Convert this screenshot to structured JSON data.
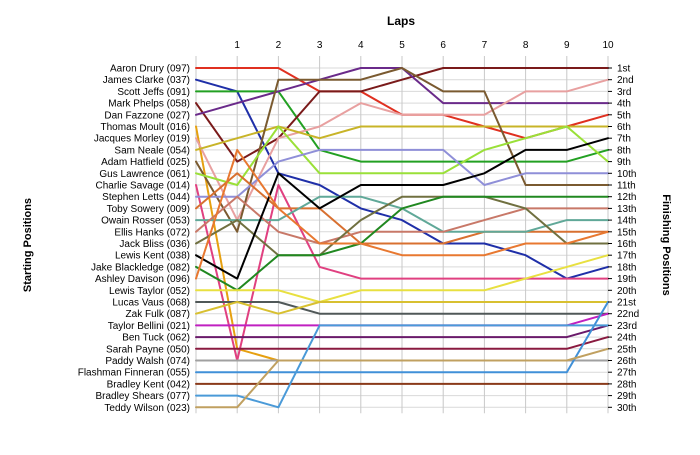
{
  "chart_data": {
    "type": "line",
    "title": "Laps",
    "ylabel_left": "Starting Positions",
    "ylabel_right": "Finishing Positions",
    "x": [
      1,
      2,
      3,
      4,
      5,
      6,
      7,
      8,
      9,
      10
    ],
    "x_tick_labels": [
      "1",
      "2",
      "3",
      "4",
      "5",
      "6",
      "7",
      "8",
      "9",
      "10"
    ],
    "finish_labels": [
      "1st",
      "2nd",
      "3rd",
      "4th",
      "5th",
      "6th",
      "7th",
      "8th",
      "9th",
      "10th",
      "11th",
      "12th",
      "13th",
      "14th",
      "15th",
      "16th",
      "17th",
      "18th",
      "19th",
      "20th",
      "21st",
      "22nd",
      "23rd",
      "24th",
      "25th",
      "26th",
      "27th",
      "28th",
      "29th",
      "30th"
    ],
    "grid": true,
    "series": [
      {
        "name": "Aaron Drury (097)",
        "color": "#e03020",
        "positions": [
          1,
          1,
          1,
          3,
          3,
          5,
          5,
          6,
          7,
          6,
          5
        ]
      },
      {
        "name": "James Clarke (037)",
        "color": "#1f2fa8",
        "positions": [
          2,
          3,
          10,
          11,
          13,
          14,
          16,
          16,
          17,
          19,
          18
        ]
      },
      {
        "name": "Scott Jeffs (091)",
        "color": "#22a022",
        "positions": [
          3,
          3,
          3,
          8,
          9,
          9,
          9,
          9,
          9,
          9,
          8
        ]
      },
      {
        "name": "Mark Phelps (058)",
        "color": "#7a1a1a",
        "positions": [
          4,
          9,
          7,
          3,
          3,
          2,
          1,
          1,
          1,
          1,
          1
        ]
      },
      {
        "name": "Dan Fazzone (027)",
        "color": "#6a2a8a",
        "positions": [
          5,
          4,
          3,
          2,
          1,
          1,
          4,
          4,
          4,
          4,
          4
        ]
      },
      {
        "name": "Thomas Moult (016)",
        "color": "#e6a010",
        "positions": [
          6,
          25,
          26,
          26,
          26,
          26,
          26,
          26,
          26,
          26,
          26
        ]
      },
      {
        "name": "Jacques Morley (019)",
        "color": "#e8a0a0",
        "positions": [
          7,
          14,
          7,
          6,
          4,
          5,
          5,
          5,
          3,
          3,
          2
        ]
      },
      {
        "name": "Sam Neale (054)",
        "color": "#c8b428",
        "positions": [
          8,
          7,
          6,
          7,
          6,
          6,
          6,
          6,
          6,
          6,
          6
        ]
      },
      {
        "name": "Adam Hatfield (025)",
        "color": "#7a5a30",
        "positions": [
          9,
          15,
          2,
          2,
          2,
          1,
          3,
          3,
          11,
          11,
          11
        ]
      },
      {
        "name": "Gus Lawrence (061)",
        "color": "#9ae038",
        "positions": [
          10,
          11,
          6,
          10,
          10,
          10,
          10,
          8,
          7,
          6,
          9
        ]
      },
      {
        "name": "Charlie Savage (014)",
        "color": "#e04080",
        "positions": [
          11,
          26,
          11,
          18,
          19,
          19,
          19,
          19,
          19,
          19,
          19
        ]
      },
      {
        "name": "Stephen Letts (044)",
        "color": "#8f8fd8",
        "positions": [
          12,
          12,
          9,
          8,
          8,
          8,
          8,
          11,
          10,
          10,
          10
        ]
      },
      {
        "name": "Toby Sowery (009)",
        "color": "#d87030",
        "positions": [
          13,
          10,
          13,
          13,
          16,
          16,
          16,
          15,
          15,
          15,
          15
        ]
      },
      {
        "name": "Owain Rosser (053)",
        "color": "#60a898",
        "positions": [
          14,
          14,
          14,
          12,
          12,
          13,
          15,
          15,
          15,
          14,
          14
        ]
      },
      {
        "name": "Ellis Hanks (072)",
        "color": "#c87868",
        "positions": [
          15,
          12,
          15,
          16,
          15,
          15,
          15,
          14,
          13,
          13,
          13
        ]
      },
      {
        "name": "Jack Bliss (036)",
        "color": "#707040",
        "positions": [
          16,
          14,
          17,
          17,
          14,
          12,
          12,
          12,
          13,
          16,
          16
        ]
      },
      {
        "name": "Lewis Kent (038)",
        "color": "#000000",
        "positions": [
          17,
          19,
          10,
          13,
          11,
          11,
          11,
          10,
          8,
          8,
          7
        ]
      },
      {
        "name": "Jake Blackledge (082)",
        "color": "#208820",
        "positions": [
          18,
          20,
          17,
          17,
          16,
          13,
          12,
          12,
          12,
          12,
          12
        ]
      },
      {
        "name": "Ashley Davison (096)",
        "color": "#e87830",
        "positions": [
          19,
          8,
          13,
          16,
          16,
          17,
          17,
          17,
          16,
          16,
          15
        ]
      },
      {
        "name": "Lewis Taylor (052)",
        "color": "#e8e040",
        "positions": [
          20,
          20,
          20,
          21,
          20,
          20,
          20,
          20,
          19,
          18,
          17
        ]
      },
      {
        "name": "Lucas Vaus (068)",
        "color": "#505858",
        "positions": [
          21,
          21,
          21,
          22,
          22,
          22,
          22,
          22,
          22,
          22,
          22
        ]
      },
      {
        "name": "Zak Fulk (087)",
        "color": "#d8c030",
        "positions": [
          22,
          21,
          22,
          21,
          21,
          21,
          21,
          21,
          21,
          21,
          21
        ]
      },
      {
        "name": "Taylor Bellini (021)",
        "color": "#c020c0",
        "positions": [
          23,
          23,
          23,
          23,
          23,
          23,
          23,
          23,
          23,
          23,
          22
        ]
      },
      {
        "name": "Ben Tuck (062)",
        "color": "#6a1a6a",
        "positions": [
          24,
          24,
          24,
          24,
          24,
          24,
          24,
          24,
          24,
          24,
          23
        ]
      },
      {
        "name": "Sarah Payne (050)",
        "color": "#8a1a40",
        "positions": [
          25,
          25,
          25,
          25,
          25,
          25,
          25,
          25,
          25,
          25,
          24
        ]
      },
      {
        "name": "Paddy Walsh (074)",
        "color": "#a0a0a0",
        "positions": [
          26,
          26,
          26,
          26,
          26,
          26,
          26,
          26,
          26,
          26,
          26
        ]
      },
      {
        "name": "Flashman Finneran (055)",
        "color": "#4090d8",
        "positions": [
          27,
          27,
          27,
          27,
          27,
          27,
          27,
          27,
          27,
          27,
          21
        ]
      },
      {
        "name": "Bradley Kent (042)",
        "color": "#8a3a1a",
        "positions": [
          28,
          28,
          28,
          28,
          28,
          28,
          28,
          28,
          28,
          28,
          28
        ]
      },
      {
        "name": "Bradley Shears (077)",
        "color": "#4a9ad8",
        "positions": [
          29,
          29,
          30,
          23,
          23,
          23,
          23,
          23,
          23,
          23,
          23
        ]
      },
      {
        "name": "Teddy Wilson (023)",
        "color": "#c0a060",
        "positions": [
          30,
          30,
          26,
          26,
          26,
          26,
          26,
          26,
          26,
          26,
          25
        ]
      }
    ]
  }
}
